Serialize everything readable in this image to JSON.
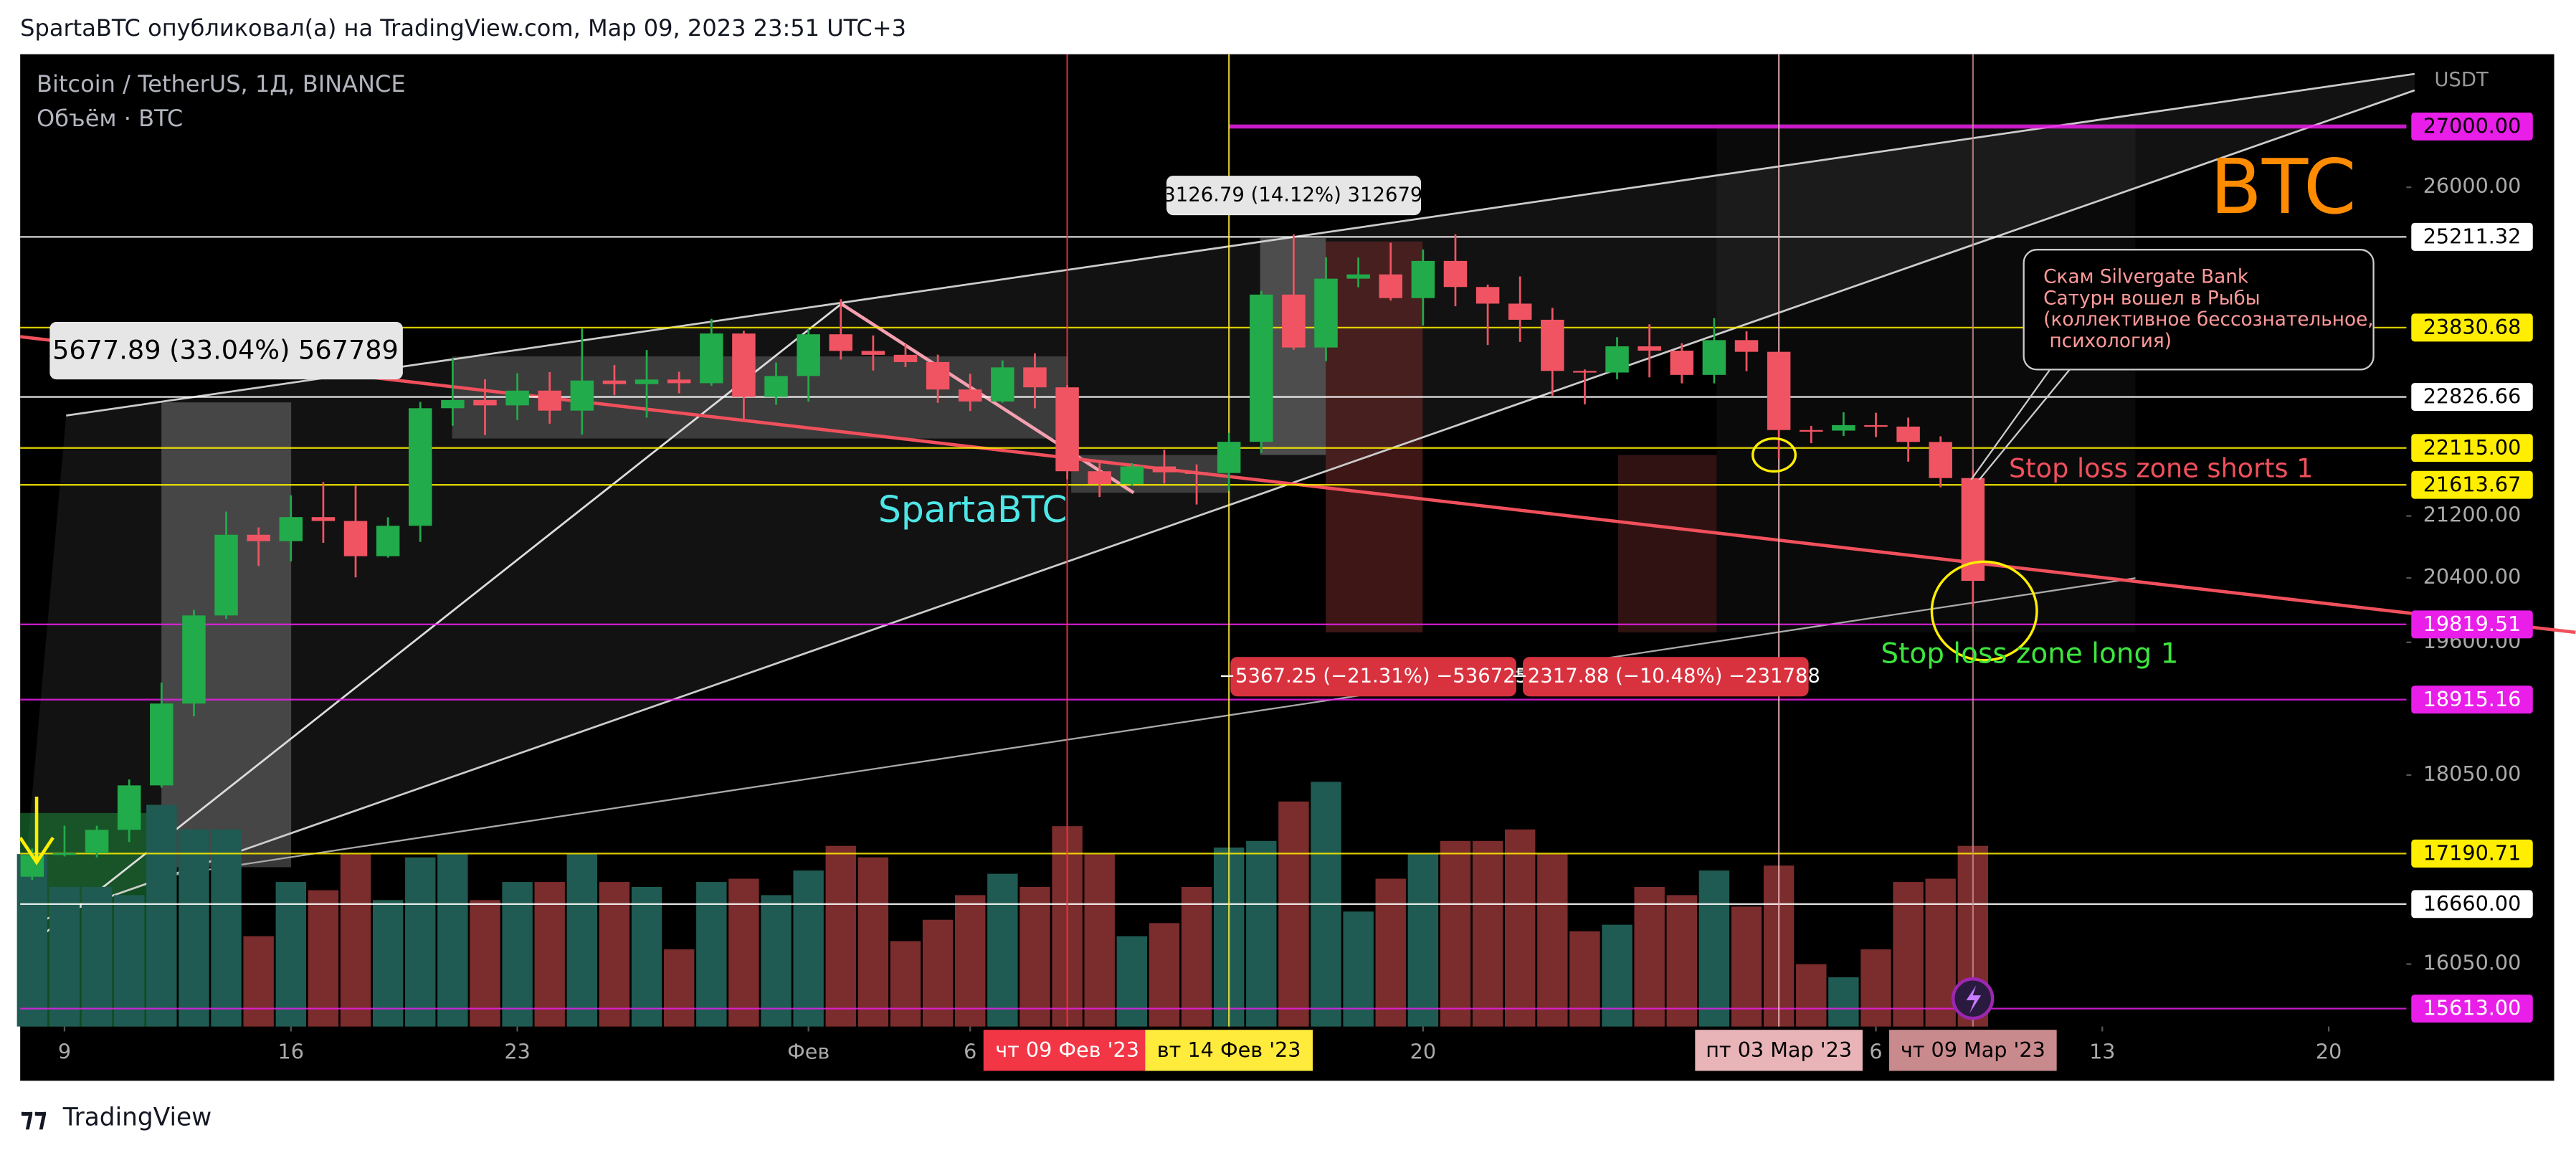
{
  "header": "SpartaBTC опубликовал(а) на TradingView.com, Мар 09, 2023 23:51 UTC+3",
  "footer": "TradingView",
  "legend": [
    "Bitcoin / TetherUS, 1Д, BINANCE",
    "Объём · BTC"
  ],
  "annotations": {
    "brand": "BTC",
    "author": "SpartaBTC",
    "measure1": "5677.89 (33.04%) 567789",
    "measure2": "3126.79 (14.12%) 312679",
    "measure3": "−5367.25 (−21.31%) −536725",
    "measure4": "−2317.88 (−10.48%) −231788",
    "shorts": "Stop loss zone shorts 1",
    "long": "Stop loss zone long 1",
    "callout": [
      "Скам Silvergate Bank",
      "Сатурн вошел в Рыбы",
      "(коллективное бессознательное,",
      " психология)"
    ]
  },
  "chart_data": {
    "type": "candlestick",
    "currency_label": "USDT",
    "yscale": "log",
    "x": [
      -1,
      0,
      1,
      2,
      3,
      4,
      5,
      6,
      7,
      8,
      9,
      10,
      11,
      12,
      13,
      14,
      15,
      16,
      17,
      18,
      19,
      20,
      21,
      22,
      23,
      24,
      25,
      26,
      27,
      28,
      29,
      30,
      31,
      32,
      33,
      34,
      35,
      36,
      37,
      38,
      39,
      40,
      41,
      42,
      43,
      44,
      45,
      46,
      47,
      48,
      49,
      50,
      51,
      52,
      53,
      54,
      55,
      56,
      57,
      58,
      59
    ],
    "open": [
      16945,
      17176,
      17195,
      17446,
      17934,
      18869,
      19930,
      20954,
      20871,
      21185,
      21134,
      20677,
      21071,
      22667,
      22783,
      22707,
      22916,
      22633,
      23060,
      23009,
      23074,
      23022,
      23743,
      22827,
      23125,
      23732,
      23488,
      23431,
      23326,
      22932,
      22762,
      23249,
      22963,
      21797,
      21625,
      21862,
      21783,
      21773,
      22199,
      24324,
      23538,
      24566,
      24631,
      24271,
      24838,
      24439,
      24188,
      23947,
      23198,
      23175,
      23555,
      23492,
      23141,
      23646,
      23475,
      22362,
      22354,
      22430,
      22410,
      22197,
      21705
    ],
    "high": [
      17244,
      17490,
      17490,
      18000,
      19117,
      19999,
      21258,
      21050,
      21474,
      21650,
      21600,
      21183,
      22755,
      23372,
      23078,
      23165,
      23180,
      23816,
      23284,
      23500,
      23186,
      23960,
      23783,
      23320,
      23812,
      24255,
      23715,
      23585,
      23433,
      23158,
      23350,
      23453,
      22995,
      21951,
      21906,
      22090,
      21890,
      22322,
      24380,
      25250,
      24895,
      24890,
      25121,
      25014,
      25250,
      24476,
      24600,
      24124,
      23219,
      23689,
      23880,
      23600,
      23971,
      23775,
      23479,
      22420,
      22610,
      22603,
      22535,
      22275,
      21815
    ],
    "low": [
      16910,
      17160,
      17150,
      17315,
      17910,
      18720,
      19889,
      20551,
      20611,
      20850,
      20407,
      20659,
      20861,
      22422,
      22292,
      22500,
      22450,
      22300,
      22850,
      22534,
      22878,
      22985,
      22500,
      22715,
      22760,
      23363,
      23204,
      23253,
      22743,
      22628,
      22745,
      22665,
      21688,
      21451,
      21599,
      21630,
      21351,
      21532,
      22047,
      23505,
      23339,
      24435,
      24234,
      23860,
      24149,
      23575,
      23620,
      22843,
      22722,
      23077,
      23106,
      23020,
      23020,
      23195,
      21971,
      22180,
      22279,
      22265,
      21927,
      21580,
      20042
    ],
    "close": [
      17176,
      17195,
      17446,
      17934,
      18869,
      19930,
      20954,
      20871,
      21185,
      21134,
      20677,
      21071,
      22667,
      22783,
      22707,
      22916,
      22633,
      23060,
      23009,
      23074,
      23022,
      23743,
      22827,
      23125,
      23732,
      23488,
      23431,
      23326,
      22932,
      22762,
      23249,
      22963,
      21797,
      21625,
      21862,
      21783,
      21773,
      22199,
      24324,
      23538,
      24566,
      24631,
      24271,
      24838,
      24439,
      24188,
      23947,
      23198,
      23175,
      23555,
      23492,
      23141,
      23646,
      23475,
      22362,
      22354,
      22430,
      22410,
      22197,
      21705,
      20363
    ],
    "volume": [
      315000,
      255000,
      255000,
      240000,
      405000,
      360000,
      360000,
      165000,
      264000,
      249000,
      315000,
      231000,
      309000,
      315000,
      231000,
      264000,
      264000,
      315000,
      264000,
      255000,
      141000,
      264000,
      270000,
      240000,
      285000,
      330000,
      309000,
      156000,
      195000,
      240000,
      279000,
      255000,
      366000,
      315000,
      165000,
      189000,
      255000,
      327000,
      339000,
      411000,
      447000,
      210000,
      270000,
      315000,
      339000,
      339000,
      360000,
      315000,
      174000,
      186000,
      255000,
      240000,
      285000,
      219000,
      294000,
      114000,
      90000,
      141000,
      264000,
      270000,
      330000
    ],
    "up_color": "#22ab4a",
    "down_color": "#f05462",
    "volume_up_color": "#1f5b52",
    "volume_down_color": "#7b2c2c",
    "ylim": [
      15440,
      28240
    ],
    "yticks": [
      {
        "value": 26000,
        "label": "26000.00"
      },
      {
        "value": 21200,
        "label": "21200.00"
      },
      {
        "value": 20400,
        "label": "20400.00"
      },
      {
        "value": 19600,
        "label": "19600.00"
      },
      {
        "value": 18050,
        "label": "18050.00"
      },
      {
        "value": 16050,
        "label": "16050.00"
      }
    ],
    "xlim": [
      -1.37,
      72.4
    ],
    "xticks": [
      {
        "value": 0,
        "label": "9"
      },
      {
        "value": 7,
        "label": "16"
      },
      {
        "value": 14,
        "label": "23"
      },
      {
        "value": 23,
        "label": "Фев"
      },
      {
        "value": 28,
        "label": "6"
      },
      {
        "value": 42,
        "label": "20"
      },
      {
        "value": 56,
        "label": "6"
      },
      {
        "value": 63,
        "label": "13"
      },
      {
        "value": 70,
        "label": "20"
      }
    ],
    "hlines": [
      {
        "value": 27000,
        "label": "27000.00",
        "color": "#e91ee9",
        "text_color": "#000000",
        "from": 36
      },
      {
        "value": 25211.32,
        "label": "25211.32",
        "color": "#ffffff",
        "text_color": "#000000"
      },
      {
        "value": 23830.68,
        "label": "23830.68",
        "color": "#ffee00",
        "text_color": "#000000"
      },
      {
        "value": 22826.66,
        "label": "22826.66",
        "color": "#ffffff",
        "text_color": "#000000"
      },
      {
        "value": 22115,
        "label": "22115.00",
        "color": "#ffee00",
        "text_color": "#000000"
      },
      {
        "value": 21613.67,
        "label": "21613.67",
        "color": "#ffee00",
        "text_color": "#000000"
      },
      {
        "value": 19819.51,
        "label": "19819.51",
        "color": "#e91ee9",
        "text_color": "#ffffff"
      },
      {
        "value": 18915.16,
        "label": "18915.16",
        "color": "#e91ee9",
        "text_color": "#ffffff"
      },
      {
        "value": 17190.71,
        "label": "17190.71",
        "color": "#ffee00",
        "text_color": "#000000"
      },
      {
        "value": 16660,
        "label": "16660.00",
        "color": "#ffffff",
        "text_color": "#000000"
      },
      {
        "value": 15613,
        "label": "15613.00",
        "color": "#e91ee9",
        "text_color": "#ffffff"
      }
    ],
    "vlines": [
      {
        "x": 31,
        "label": "чт 09 Фев '23",
        "color": "#f23645",
        "text_color": "#ffffff"
      },
      {
        "x": 36,
        "label": "вт 14 Фев '23",
        "color": "#ffeb3b",
        "text_color": "#000000"
      },
      {
        "x": 53,
        "label": "пт 03 Мар '23",
        "color": "#e8b4b8",
        "text_color": "#000000"
      },
      {
        "x": 59,
        "label": "чт 09 Мар '23",
        "color": "#c98a8e",
        "text_color": "#000000"
      }
    ]
  }
}
